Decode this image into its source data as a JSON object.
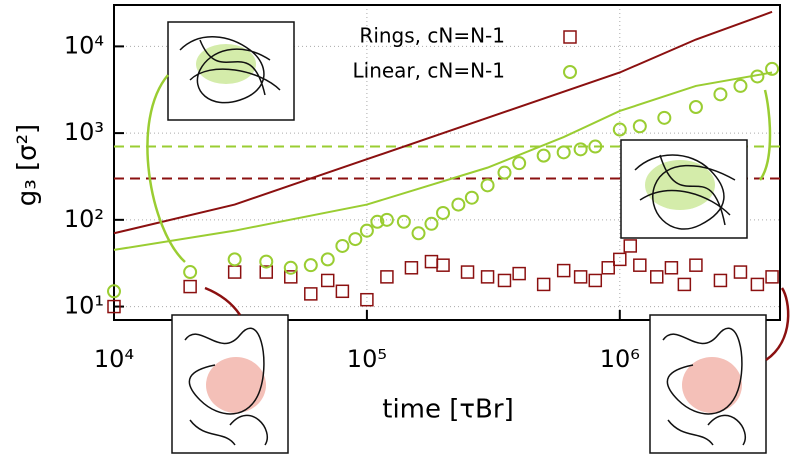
{
  "chart_data": {
    "type": "scatter",
    "x_label": "time [τBr]",
    "y_label": "g₃ [σ²]",
    "xscale": "log",
    "yscale": "log",
    "xlim": [
      10000,
      4300000
    ],
    "ylim": [
      7,
      30000
    ],
    "xticks": [
      {
        "value": 10000,
        "label": "10⁴"
      },
      {
        "value": 100000,
        "label": "10⁵"
      },
      {
        "value": 1000000,
        "label": "10⁶"
      }
    ],
    "yticks": [
      {
        "value": 10,
        "label": "10¹"
      },
      {
        "value": 100,
        "label": "10²"
      },
      {
        "value": 1000,
        "label": "10³"
      },
      {
        "value": 10000,
        "label": "10⁴"
      }
    ],
    "grid": true,
    "legend": "top",
    "series": [
      {
        "name": "Rings, cN=N-1",
        "mode": "markers",
        "marker": "square",
        "color": "#8b1010",
        "x": [
          10000,
          20000,
          30000,
          40000,
          50000,
          60000,
          70000,
          80000,
          100000,
          120000,
          150000,
          180000,
          200000,
          250000,
          300000,
          350000,
          400000,
          500000,
          600000,
          700000,
          800000,
          900000,
          1000000,
          1100000,
          1200000,
          1400000,
          1600000,
          1800000,
          2000000,
          2500000,
          3000000,
          3500000,
          4000000
        ],
        "values": [
          10,
          17,
          25,
          25,
          22,
          14,
          20,
          15,
          12,
          22,
          28,
          33,
          30,
          25,
          22,
          20,
          24,
          18,
          26,
          22,
          20,
          28,
          35,
          50,
          30,
          22,
          28,
          18,
          30,
          20,
          25,
          18,
          22
        ]
      },
      {
        "name": "Linear, cN=N-1",
        "mode": "markers",
        "marker": "circle",
        "color": "#9acd32",
        "x": [
          10000,
          20000,
          30000,
          40000,
          50000,
          60000,
          70000,
          80000,
          90000,
          100000,
          110000,
          120000,
          140000,
          160000,
          180000,
          200000,
          230000,
          260000,
          300000,
          350000,
          400000,
          500000,
          600000,
          700000,
          800000,
          1000000,
          1200000,
          1500000,
          2000000,
          2500000,
          3000000,
          3500000,
          4000000
        ],
        "values": [
          15,
          25,
          35,
          33,
          28,
          30,
          35,
          50,
          60,
          75,
          95,
          100,
          95,
          70,
          90,
          120,
          150,
          180,
          250,
          350,
          450,
          550,
          600,
          650,
          700,
          1100,
          1200,
          1500,
          2000,
          2800,
          3500,
          4500,
          5500
        ]
      },
      {
        "mode": "lines",
        "color": "#8b1010",
        "x": [
          10000,
          30000,
          100000,
          300000,
          1000000,
          2000000,
          4000000
        ],
        "values": [
          70,
          150,
          500,
          1500,
          5000,
          12000,
          25000
        ]
      },
      {
        "mode": "lines",
        "color": "#9acd32",
        "x": [
          10000,
          30000,
          100000,
          300000,
          600000,
          1000000,
          2000000,
          4000000
        ],
        "values": [
          45,
          75,
          150,
          400,
          900,
          1800,
          3500,
          5000
        ]
      }
    ],
    "hlines": [
      {
        "value": 300,
        "color": "#8b1010"
      },
      {
        "value": 700,
        "color": "#9acd32"
      }
    ]
  }
}
